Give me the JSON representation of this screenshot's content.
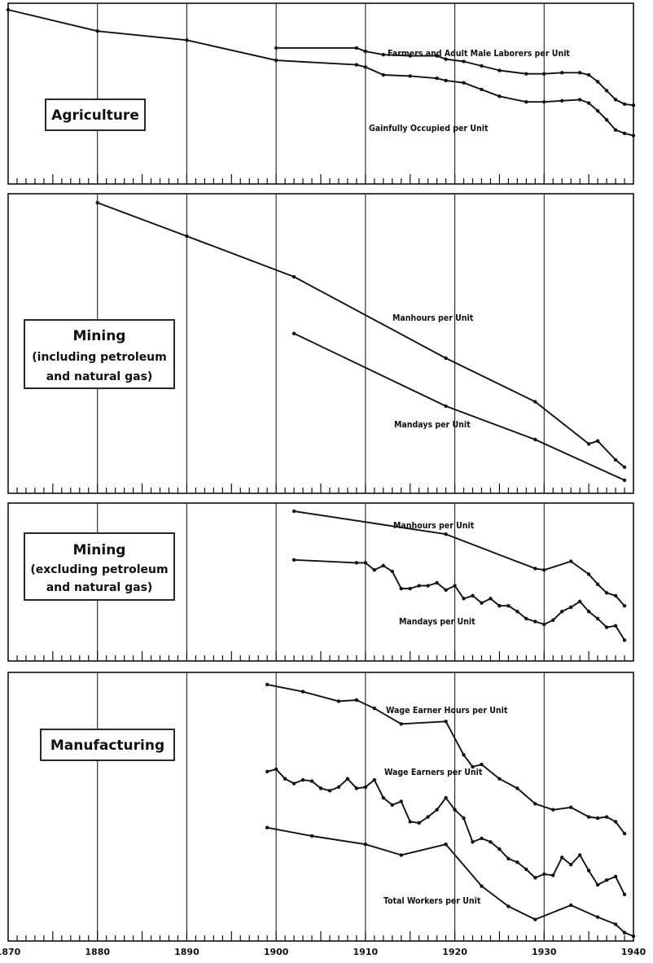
{
  "chart_data": [
    {
      "type": "line",
      "panel_label": [
        "Agriculture"
      ],
      "x_range": [
        1870,
        1940
      ],
      "series": [
        {
          "name": "Farmers and Adult Male Laborers per Unit",
          "x": [
            1900,
            1909,
            1910,
            1912,
            1915,
            1918,
            1919,
            1921,
            1923,
            1925,
            1928,
            1930,
            1932,
            1934,
            1935,
            1936,
            1937,
            1938,
            1939,
            1940
          ],
          "y": [
            83.0,
            83.0,
            81.5,
            80.0,
            79.5,
            79.5,
            78.0,
            77.0,
            75.0,
            73.0,
            71.5,
            71.5,
            72.0,
            72.0,
            71.0,
            68.0,
            64.0,
            60.0,
            58.0,
            57.5
          ]
        },
        {
          "name": "Gainfully Occupied per Unit",
          "x": [
            1870,
            1880,
            1890,
            1900,
            1909,
            1910,
            1912,
            1915,
            1918,
            1919,
            1921,
            1923,
            1925,
            1928,
            1930,
            1932,
            1934,
            1935,
            1936,
            1937,
            1938,
            1939,
            1940
          ],
          "y": [
            100.0,
            90.5,
            86.5,
            77.5,
            75.5,
            74.5,
            71.0,
            70.5,
            69.5,
            68.5,
            67.5,
            64.5,
            61.5,
            59.0,
            59.0,
            59.5,
            60.0,
            58.5,
            55.0,
            51.0,
            46.5,
            45.0,
            44.0
          ]
        }
      ]
    },
    {
      "type": "line",
      "panel_label": [
        "Mining",
        "(including petroleum",
        "and natural gas)"
      ],
      "x_range": [
        1870,
        1940
      ],
      "series": [
        {
          "name": "Manhours per Unit",
          "x": [
            1880,
            1890,
            1902,
            1919,
            1929,
            1935,
            1936,
            1938,
            1939
          ],
          "y": [
            100.0,
            88.5,
            74.5,
            46.5,
            31.5,
            17.0,
            18.0,
            11.5,
            9.0
          ]
        },
        {
          "name": "Mandays per Unit",
          "x": [
            1902,
            1919,
            1929,
            1939
          ],
          "y": [
            55.0,
            30.0,
            18.5,
            4.5
          ]
        }
      ]
    },
    {
      "type": "line",
      "panel_label": [
        "Mining",
        "(excluding petroleum",
        "and natural gas)"
      ],
      "x_range": [
        1870,
        1940
      ],
      "series": [
        {
          "name": "Manhours per Unit",
          "x": [
            1902,
            1919,
            1929,
            1930,
            1933,
            1935,
            1936,
            1937,
            1938,
            1939
          ],
          "y": [
            100.0,
            92.0,
            80.0,
            79.5,
            82.5,
            78.0,
            74.5,
            71.5,
            70.5,
            67.0
          ]
        },
        {
          "name": "Mandays per Unit",
          "x": [
            1902,
            1909,
            1910,
            1911,
            1912,
            1913,
            1914,
            1915,
            1916,
            1917,
            1918,
            1919,
            1920,
            1921,
            1922,
            1923,
            1924,
            1925,
            1926,
            1927,
            1928,
            1929,
            1930,
            1931,
            1932,
            1933,
            1934,
            1935,
            1936,
            1937,
            1938,
            1939
          ],
          "y": [
            83.0,
            82.0,
            82.0,
            79.5,
            81.0,
            79.0,
            73.0,
            73.0,
            74.0,
            74.0,
            75.0,
            72.5,
            74.0,
            69.5,
            70.5,
            68.0,
            69.5,
            67.0,
            67.0,
            65.0,
            62.5,
            61.5,
            60.5,
            62.0,
            65.0,
            66.5,
            68.5,
            65.0,
            62.5,
            59.5,
            60.0,
            55.0
          ]
        }
      ]
    },
    {
      "type": "line",
      "panel_label": [
        "Manufacturing"
      ],
      "x_range": [
        1870,
        1940
      ],
      "series": [
        {
          "name": "Wage Earner Hours per Unit",
          "x": [
            1899,
            1903,
            1907,
            1909,
            1911,
            1914,
            1919,
            1921,
            1922,
            1923,
            1925,
            1927,
            1929,
            1931,
            1933,
            1935,
            1936,
            1937,
            1938,
            1939
          ],
          "y": [
            99.0,
            96.0,
            92.0,
            92.5,
            89.0,
            82.5,
            83.5,
            69.5,
            64.5,
            65.5,
            59.5,
            55.5,
            49.0,
            46.5,
            47.5,
            43.5,
            43.0,
            43.5,
            41.5,
            36.5
          ]
        },
        {
          "name": "Wage Earners per Unit",
          "x": [
            1899,
            1900,
            1901,
            1902,
            1903,
            1904,
            1905,
            1906,
            1907,
            1908,
            1909,
            1910,
            1911,
            1912,
            1913,
            1914,
            1915,
            1916,
            1917,
            1918,
            1919,
            1920,
            1921,
            1922,
            1923,
            1924,
            1925,
            1926,
            1927,
            1928,
            1929,
            1930,
            1931,
            1932,
            1933,
            1934,
            1935,
            1936,
            1937,
            1938,
            1939
          ],
          "y": [
            62.5,
            63.5,
            59.5,
            57.5,
            59.0,
            58.5,
            55.5,
            54.5,
            56.0,
            59.5,
            55.5,
            56.0,
            59.0,
            51.5,
            48.5,
            50.0,
            41.5,
            41.0,
            43.5,
            46.5,
            51.5,
            46.5,
            43.0,
            33.0,
            34.5,
            33.0,
            30.0,
            26.0,
            24.5,
            21.5,
            18.0,
            19.5,
            19.0,
            26.5,
            23.5,
            27.5,
            21.0,
            15.0,
            17.0,
            18.5,
            11.0
          ]
        },
        {
          "name": "Total Workers per Unit",
          "x": [
            1899,
            1904,
            1910,
            1914,
            1919,
            1923,
            1926,
            1929,
            1933,
            1936,
            1938,
            1939,
            1940
          ],
          "y": [
            39.0,
            35.5,
            32.0,
            27.5,
            32.0,
            14.5,
            6.0,
            0.5,
            6.5,
            1.5,
            -1.5,
            -5.0,
            -6.5
          ]
        }
      ]
    }
  ],
  "x_tick_labels": [
    "1870",
    "1880",
    "1890",
    "1900",
    "1910",
    "1920",
    "1930",
    "1940"
  ]
}
